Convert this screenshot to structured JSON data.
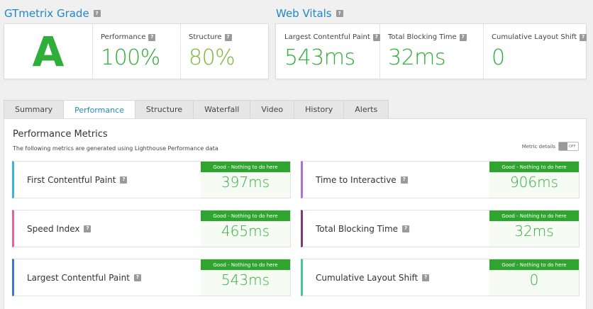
{
  "grade": {
    "title": "GTmetrix Grade",
    "letter": "A",
    "performance_label": "Performance",
    "performance_value": "100%",
    "structure_label": "Structure",
    "structure_value": "80%"
  },
  "vitals": {
    "title": "Web Vitals",
    "items": [
      {
        "label": "Largest Contentful Paint",
        "value": "543ms"
      },
      {
        "label": "Total Blocking Time",
        "value": "32ms"
      },
      {
        "label": "Cumulative Layout Shift",
        "value": "0"
      }
    ]
  },
  "tabs": [
    "Summary",
    "Performance",
    "Structure",
    "Waterfall",
    "Video",
    "History",
    "Alerts"
  ],
  "active_tab": "Performance",
  "panel": {
    "title": "Performance Metrics",
    "description": "The following metrics are generated using Lighthouse Performance data",
    "toggle_label": "Metric details",
    "toggle_state": "OFF"
  },
  "metrics": [
    {
      "name": "First Contentful Paint",
      "badge": "Good - Nothing to do here",
      "value": "397ms",
      "color": "#3ab3e0"
    },
    {
      "name": "Time to Interactive",
      "badge": "Good - Nothing to do here",
      "value": "906ms",
      "color": "#a876d0"
    },
    {
      "name": "Speed Index",
      "badge": "Good - Nothing to do here",
      "value": "465ms",
      "color": "#e8609c"
    },
    {
      "name": "Total Blocking Time",
      "badge": "Good - Nothing to do here",
      "value": "32ms",
      "color": "#7a3d73"
    },
    {
      "name": "Largest Contentful Paint",
      "badge": "Good - Nothing to do here",
      "value": "543ms",
      "color": "#3a78c9"
    },
    {
      "name": "Cumulative Layout Shift",
      "badge": "Good - Nothing to do here",
      "value": "0",
      "color": "#4cc49a"
    }
  ],
  "colors": {
    "accent": "#1e88c9",
    "good_green": "#2fae3a",
    "badge_green": "#2fa52f"
  }
}
